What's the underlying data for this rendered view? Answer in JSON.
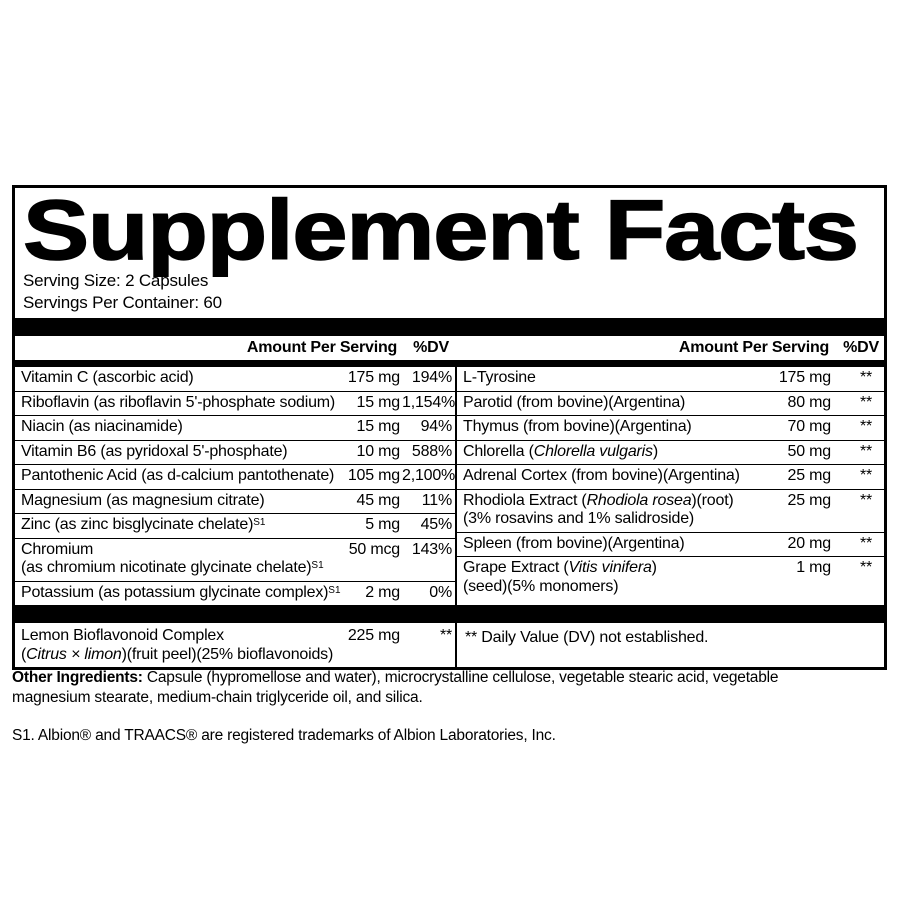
{
  "title": "Supplement Facts",
  "serving_size": "Serving Size: 2 Capsules",
  "servings_per_container": "Servings Per Container: 60",
  "column_headers": {
    "amount": "Amount Per Serving",
    "dv": "%DV"
  },
  "left_rows": [
    {
      "lines": [
        [
          {
            "t": "Vitamin C (ascorbic acid)"
          }
        ]
      ],
      "amount": "175 mg",
      "dv": "194%"
    },
    {
      "lines": [
        [
          {
            "t": "Riboflavin (as riboflavin 5'-phosphate sodium)"
          }
        ]
      ],
      "amount": "15 mg",
      "dv": "1,154%"
    },
    {
      "lines": [
        [
          {
            "t": "Niacin (as niacinamide)"
          }
        ]
      ],
      "amount": "15 mg",
      "dv": "94%"
    },
    {
      "lines": [
        [
          {
            "t": "Vitamin B6 (as pyridoxal 5'-phosphate)"
          }
        ]
      ],
      "amount": "10 mg",
      "dv": "588%"
    },
    {
      "lines": [
        [
          {
            "t": "Pantothenic Acid (as d-calcium pantothenate)"
          }
        ]
      ],
      "amount": "105 mg",
      "dv": "2,100%"
    },
    {
      "lines": [
        [
          {
            "t": "Magnesium (as magnesium citrate)"
          }
        ]
      ],
      "amount": "45 mg",
      "dv": "11%"
    },
    {
      "lines": [
        [
          {
            "t": "Zinc (as zinc bisglycinate chelate)"
          },
          {
            "t": "S1",
            "sup": true
          }
        ]
      ],
      "amount": "5 mg",
      "dv": "45%"
    },
    {
      "lines": [
        [
          {
            "t": "Chromium"
          }
        ],
        [
          {
            "t": "(as chromium nicotinate glycinate chelate)"
          },
          {
            "t": "S1",
            "sup": true
          }
        ]
      ],
      "amount": "50 mcg",
      "dv": "143%"
    },
    {
      "lines": [
        [
          {
            "t": "Potassium (as potassium glycinate complex)"
          },
          {
            "t": "S1",
            "sup": true
          }
        ]
      ],
      "amount": "2 mg",
      "dv": "0%"
    }
  ],
  "right_rows": [
    {
      "lines": [
        [
          {
            "t": "L-Tyrosine"
          }
        ]
      ],
      "amount": "175 mg",
      "dv": "**"
    },
    {
      "lines": [
        [
          {
            "t": "Parotid (from bovine)(Argentina)"
          }
        ]
      ],
      "amount": "80 mg",
      "dv": "**"
    },
    {
      "lines": [
        [
          {
            "t": "Thymus (from bovine)(Argentina)"
          }
        ]
      ],
      "amount": "70 mg",
      "dv": "**"
    },
    {
      "lines": [
        [
          {
            "t": "Chlorella ("
          },
          {
            "t": "Chlorella vulgaris",
            "i": true
          },
          {
            "t": ")"
          }
        ]
      ],
      "amount": "50 mg",
      "dv": "**"
    },
    {
      "lines": [
        [
          {
            "t": "Adrenal Cortex (from bovine)(Argentina)"
          }
        ]
      ],
      "amount": "25 mg",
      "dv": "**"
    },
    {
      "lines": [
        [
          {
            "t": "Rhodiola Extract ("
          },
          {
            "t": "Rhodiola rosea",
            "i": true
          },
          {
            "t": ")(root)"
          }
        ],
        [
          {
            "t": "(3% rosavins and 1% salidroside)"
          }
        ]
      ],
      "amount": "25 mg",
      "dv": "**"
    },
    {
      "lines": [
        [
          {
            "t": "Spleen (from bovine)(Argentina)"
          }
        ]
      ],
      "amount": "20 mg",
      "dv": "**"
    },
    {
      "lines": [
        [
          {
            "t": "Grape Extract ("
          },
          {
            "t": "Vitis vinifera",
            "i": true
          },
          {
            "t": ")"
          }
        ],
        [
          {
            "t": "(seed)(5% monomers)"
          }
        ]
      ],
      "amount": "1 mg",
      "dv": "**"
    }
  ],
  "footer_left_row": {
    "lines": [
      [
        {
          "t": "Lemon Bioflavonoid Complex"
        }
      ],
      [
        {
          "t": "("
        },
        {
          "t": "Citrus × limon",
          "i": true
        },
        {
          "t": ")(fruit peel)(25% bioflavonoids)"
        }
      ]
    ],
    "amount": "225 mg",
    "dv": "**"
  },
  "footnote": "** Daily Value (DV) not established.",
  "other_ingredients_label": "Other Ingredients:",
  "other_ingredients_text": " Capsule (hypromellose and water), microcrystalline cellulose, vegetable stearic acid, vegetable magnesium stearate, medium-chain triglyceride oil, and silica.",
  "trademark_note": "S1. Albion® and TRAACS® are registered trademarks of Albion Laboratories, Inc."
}
